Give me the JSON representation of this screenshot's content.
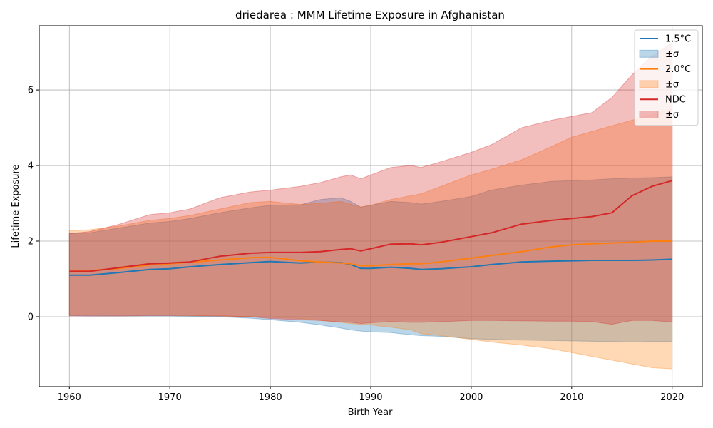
{
  "chart_data": {
    "type": "line",
    "title": "driedarea : MMM Lifetime Exposure in Afghanistan",
    "xlabel": "Birth Year",
    "ylabel": "Lifetime Exposure",
    "xlim": [
      1957,
      2023
    ],
    "ylim": [
      -1.85,
      7.7
    ],
    "xticks": [
      1960,
      1970,
      1980,
      1990,
      2000,
      2010,
      2020
    ],
    "yticks": [
      0,
      2,
      4,
      6
    ],
    "grid": true,
    "legend_position": "top-right",
    "legend": [
      "1.5°C",
      "±σ",
      "2.0°C",
      "±σ",
      "NDC",
      "±σ"
    ],
    "series": [
      {
        "name": "1.5°C",
        "color": "#1f77b4",
        "band_color": "#1f77b4",
        "x": [
          1960,
          1962,
          1965,
          1968,
          1970,
          1972,
          1975,
          1978,
          1980,
          1983,
          1985,
          1987,
          1988,
          1989,
          1990,
          1992,
          1994,
          1995,
          1997,
          2000,
          2002,
          2005,
          2008,
          2010,
          2012,
          2014,
          2016,
          2018,
          2020
        ],
        "mean": [
          1.1,
          1.1,
          1.17,
          1.25,
          1.27,
          1.32,
          1.38,
          1.43,
          1.46,
          1.42,
          1.45,
          1.43,
          1.38,
          1.28,
          1.28,
          1.31,
          1.28,
          1.25,
          1.27,
          1.32,
          1.38,
          1.45,
          1.47,
          1.48,
          1.49,
          1.49,
          1.49,
          1.5,
          1.52
        ],
        "upper": [
          2.2,
          2.22,
          2.35,
          2.48,
          2.52,
          2.6,
          2.75,
          2.88,
          2.95,
          2.96,
          3.1,
          3.15,
          3.05,
          2.9,
          2.95,
          3.05,
          3.02,
          2.98,
          3.05,
          3.18,
          3.35,
          3.48,
          3.58,
          3.6,
          3.62,
          3.65,
          3.67,
          3.68,
          3.7
        ],
        "lower": [
          0.03,
          0.02,
          0.02,
          0.02,
          0.02,
          0.01,
          0.0,
          -0.04,
          -0.08,
          -0.15,
          -0.22,
          -0.3,
          -0.35,
          -0.38,
          -0.4,
          -0.42,
          -0.48,
          -0.5,
          -0.52,
          -0.58,
          -0.6,
          -0.62,
          -0.63,
          -0.64,
          -0.65,
          -0.66,
          -0.67,
          -0.66,
          -0.65
        ]
      },
      {
        "name": "2.0°C",
        "color": "#ff7f0e",
        "band_color": "#ff7f0e",
        "x": [
          1960,
          1962,
          1965,
          1968,
          1970,
          1972,
          1975,
          1978,
          1980,
          1983,
          1985,
          1987,
          1988,
          1989,
          1990,
          1992,
          1994,
          1995,
          1997,
          2000,
          2002,
          2005,
          2008,
          2010,
          2012,
          2014,
          2016,
          2018,
          2020
        ],
        "mean": [
          1.2,
          1.22,
          1.28,
          1.37,
          1.4,
          1.44,
          1.5,
          1.56,
          1.57,
          1.48,
          1.45,
          1.42,
          1.4,
          1.35,
          1.35,
          1.38,
          1.4,
          1.4,
          1.45,
          1.55,
          1.62,
          1.72,
          1.85,
          1.9,
          1.93,
          1.95,
          1.97,
          2.0,
          2.0
        ],
        "upper": [
          2.28,
          2.3,
          2.4,
          2.55,
          2.6,
          2.68,
          2.85,
          3.02,
          3.05,
          2.97,
          3.0,
          3.05,
          2.98,
          2.9,
          2.95,
          3.1,
          3.2,
          3.25,
          3.45,
          3.75,
          3.9,
          4.15,
          4.5,
          4.75,
          4.9,
          5.05,
          5.2,
          5.35,
          5.5
        ],
        "lower": [
          0.05,
          0.05,
          0.04,
          0.04,
          0.04,
          0.03,
          0.02,
          0.0,
          -0.02,
          -0.05,
          -0.1,
          -0.15,
          -0.18,
          -0.2,
          -0.22,
          -0.28,
          -0.35,
          -0.45,
          -0.5,
          -0.6,
          -0.67,
          -0.75,
          -0.85,
          -0.95,
          -1.05,
          -1.15,
          -1.25,
          -1.35,
          -1.38
        ]
      },
      {
        "name": "NDC",
        "color": "#d62728",
        "band_color": "#d62728",
        "x": [
          1960,
          1962,
          1965,
          1968,
          1970,
          1972,
          1975,
          1978,
          1980,
          1983,
          1985,
          1987,
          1988,
          1989,
          1990,
          1992,
          1994,
          1995,
          1997,
          2000,
          2002,
          2005,
          2008,
          2010,
          2012,
          2014,
          2016,
          2018,
          2020
        ],
        "mean": [
          1.2,
          1.2,
          1.3,
          1.4,
          1.42,
          1.45,
          1.6,
          1.68,
          1.7,
          1.7,
          1.72,
          1.78,
          1.8,
          1.74,
          1.8,
          1.92,
          1.93,
          1.9,
          1.97,
          2.12,
          2.22,
          2.45,
          2.55,
          2.6,
          2.65,
          2.75,
          3.2,
          3.45,
          3.6
        ],
        "upper": [
          2.2,
          2.25,
          2.45,
          2.7,
          2.75,
          2.85,
          3.15,
          3.3,
          3.35,
          3.45,
          3.55,
          3.7,
          3.75,
          3.65,
          3.75,
          3.95,
          4.0,
          3.95,
          4.1,
          4.35,
          4.55,
          5.0,
          5.2,
          5.3,
          5.4,
          5.8,
          6.4,
          6.9,
          7.25
        ],
        "lower": [
          0.02,
          0.02,
          0.02,
          0.03,
          0.03,
          0.03,
          0.02,
          0.0,
          -0.05,
          -0.08,
          -0.1,
          -0.14,
          -0.15,
          -0.18,
          -0.16,
          -0.13,
          -0.15,
          -0.15,
          -0.13,
          -0.1,
          -0.1,
          -0.11,
          -0.12,
          -0.12,
          -0.13,
          -0.2,
          -0.1,
          -0.1,
          -0.14
        ]
      }
    ]
  }
}
